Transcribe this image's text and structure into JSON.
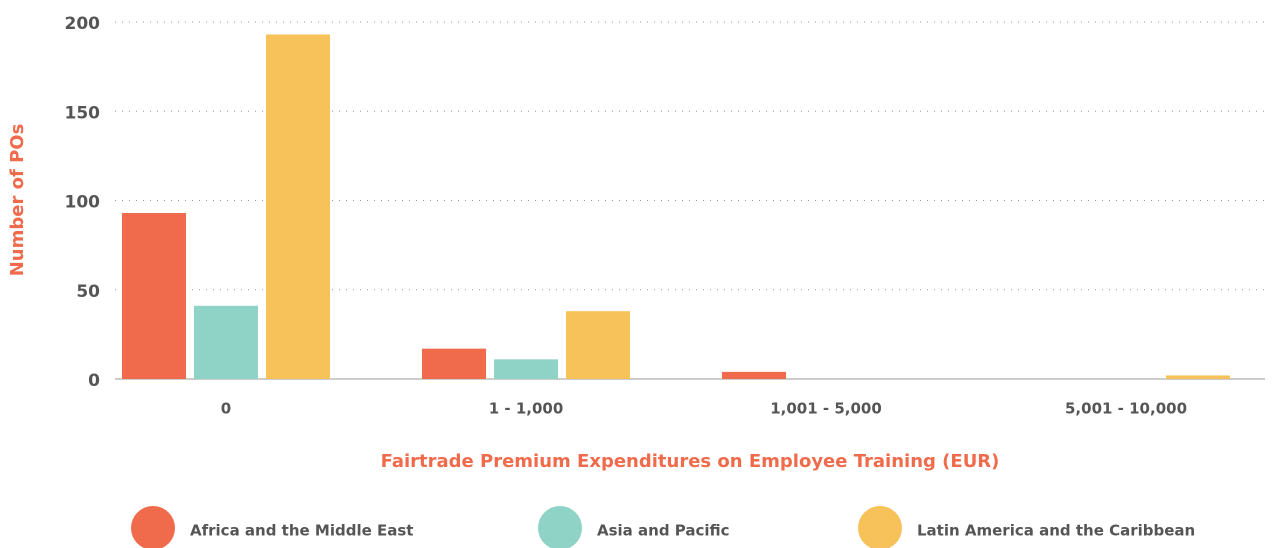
{
  "chart_data": {
    "type": "bar",
    "xlabel": "Fairtrade Premium Expenditures on Employee Training (EUR)",
    "ylabel": "Number of POs",
    "categories": [
      "0",
      "1 - 1,000",
      "1,001 - 5,000",
      "5,001 - 10,000"
    ],
    "series": [
      {
        "name": "Africa and the Middle East",
        "color": "#f06b4c",
        "values": [
          93,
          17,
          4,
          0
        ]
      },
      {
        "name": "Asia and Pacific",
        "color": "#8fd3c7",
        "values": [
          41,
          11,
          0,
          0
        ]
      },
      {
        "name": "Latin America and the Caribbean",
        "color": "#f8c25a",
        "values": [
          193,
          38,
          0,
          2
        ]
      }
    ],
    "ylim": [
      0,
      200
    ],
    "yticks": [
      0,
      50,
      100,
      150,
      200
    ],
    "grid": true,
    "legend": "bottom"
  }
}
